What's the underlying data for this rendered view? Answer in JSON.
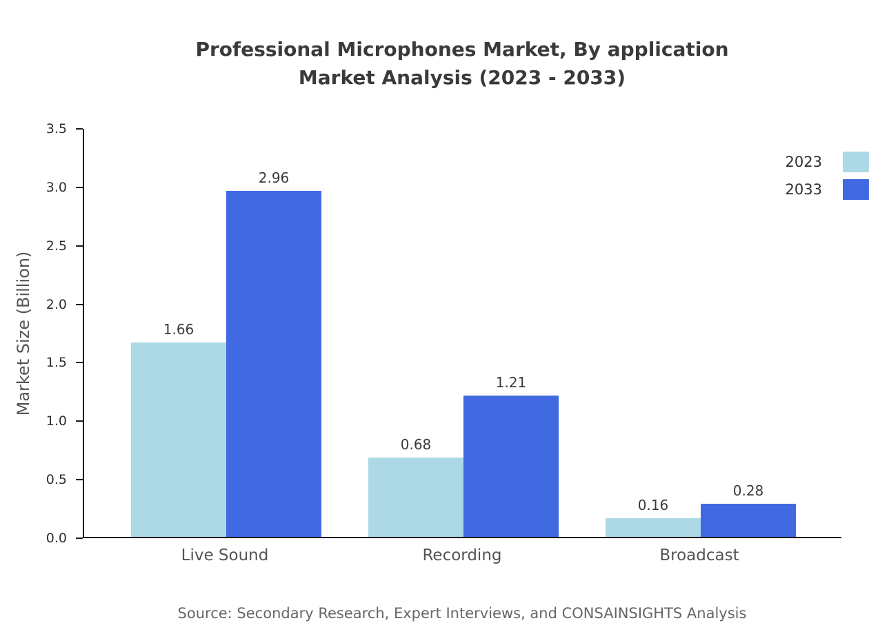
{
  "chart_data": {
    "type": "bar",
    "title_line1": "Professional Microphones Market, By application",
    "title_line2": "Market Analysis (2023 - 2033)",
    "xlabel": "",
    "ylabel": "Market Size (Billion)",
    "categories": [
      "Live Sound",
      "Recording",
      "Broadcast"
    ],
    "series": [
      {
        "name": "2023",
        "color": "#ADD8E6",
        "values": [
          1.66,
          0.68,
          0.16
        ]
      },
      {
        "name": "2033",
        "color": "#4169E1",
        "values": [
          2.96,
          1.21,
          0.28
        ]
      }
    ],
    "ylim": [
      0,
      3.5
    ],
    "yticks": [
      "0.0",
      "0.5",
      "1.0",
      "1.5",
      "2.0",
      "2.5",
      "3.0",
      "3.5"
    ],
    "grid": false,
    "legend_position": "top-right",
    "source": "Source: Secondary Research, Expert Interviews, and CONSAINSIGHTS Analysis"
  }
}
